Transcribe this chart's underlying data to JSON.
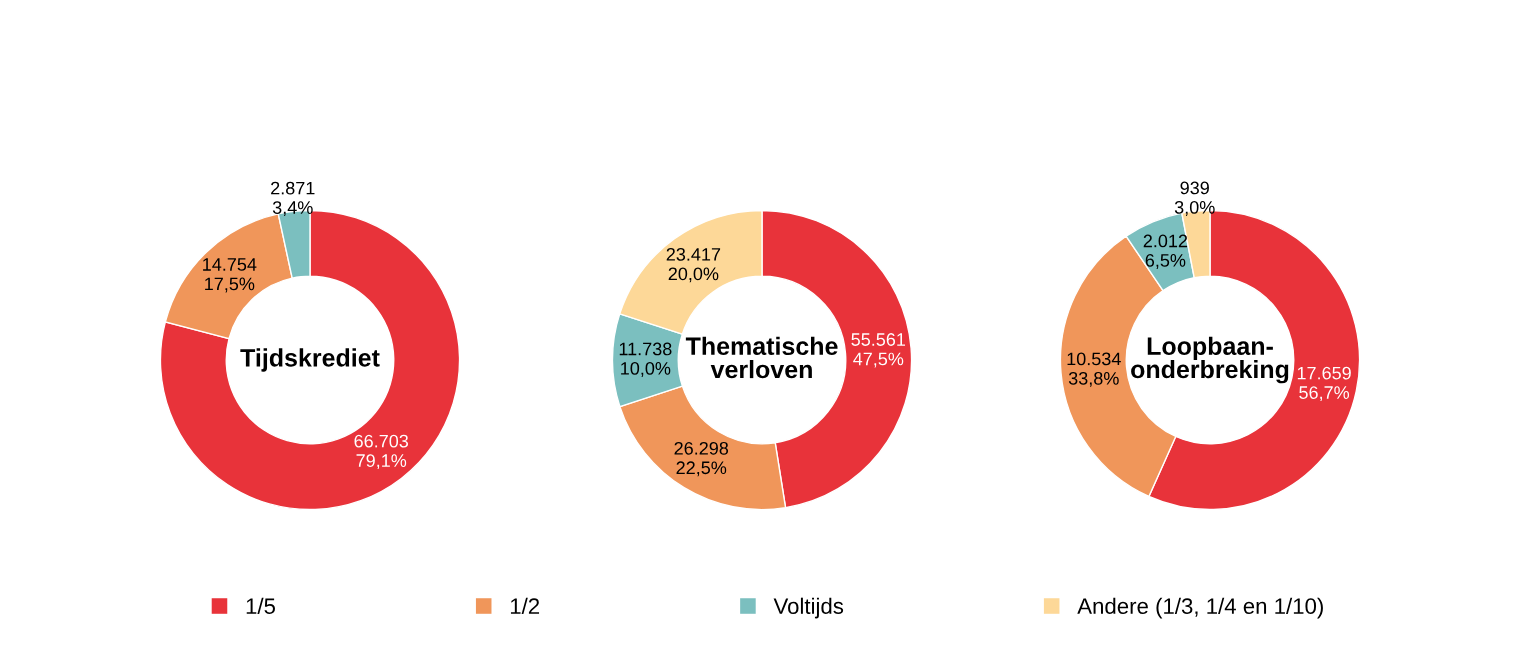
{
  "chart_data": [
    {
      "type": "donut",
      "title": "Tijdskrediet",
      "categories": [
        null,
        null,
        null
      ],
      "values": [
        66703,
        14754,
        2871
      ],
      "value_labels": [
        "66.703\n79,1%",
        "14.754\n17,5%",
        "2.871\n3,4%"
      ],
      "colors": [
        "#e8333a",
        "#f0965a",
        "#7bbfbf"
      ],
      "legend": false
    },
    {
      "type": "donut",
      "title": "Thematische\nverloven",
      "categories": [
        "1/5",
        "1/2",
        "Voltijds",
        "Andere (1/3, 1/4 en 1/10)"
      ],
      "values": [
        55561,
        26298,
        11738,
        23417
      ],
      "value_labels": [
        "55.561\n47,5%",
        "26.298\n22,5%",
        "11.738\n10,0%",
        "23.417\n20,0%"
      ],
      "colors": [
        "#e8333a",
        "#f0965a",
        "#7bbfbf",
        "#fdd898"
      ],
      "legend": "bottom"
    },
    {
      "type": "donut",
      "title": "Loopbaan-\nonderbreking",
      "categories": [
        null,
        null,
        null,
        null
      ],
      "values": [
        17659,
        10534,
        2012,
        939
      ],
      "value_labels": [
        "17.659\n56,7%",
        "10.534\n33,8%",
        "2.012\n6,5%",
        "939\n3,0%"
      ],
      "colors": [
        "#e8333a",
        "#f0965a",
        "#7bbfbf",
        "#fdd898"
      ],
      "legend": false
    }
  ]
}
